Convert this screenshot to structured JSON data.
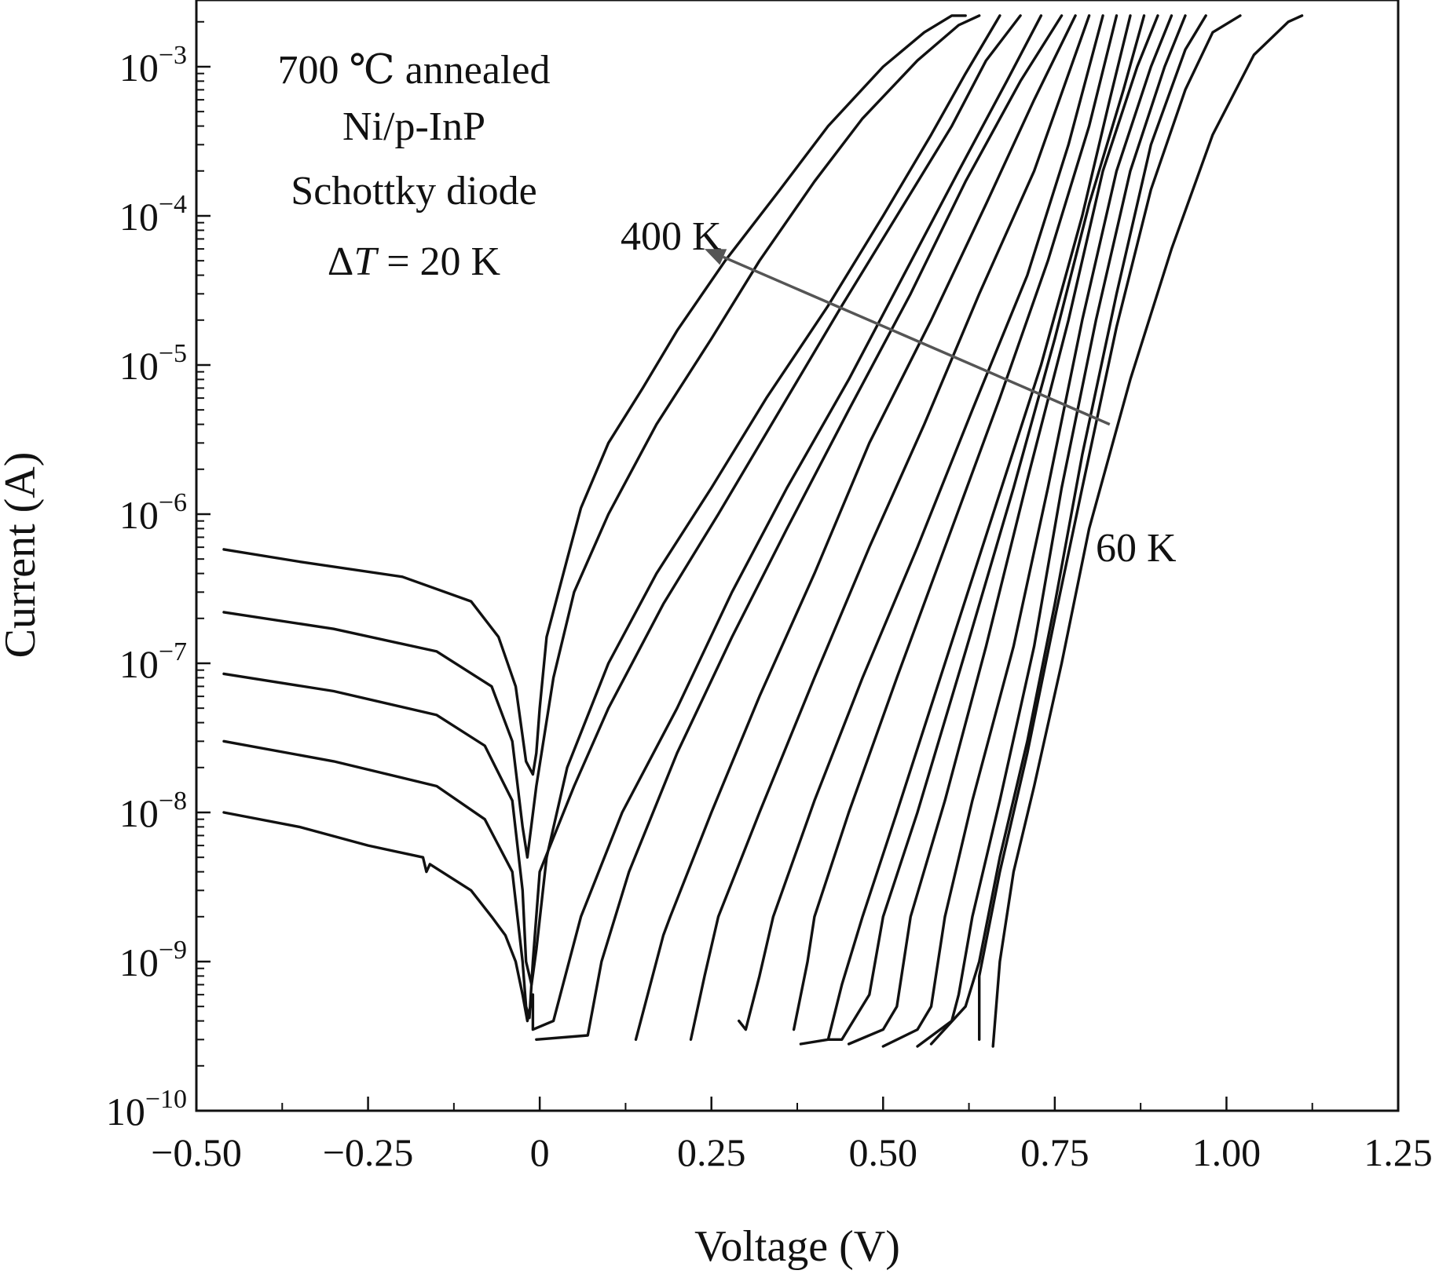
{
  "chart_data": {
    "type": "line",
    "xlabel": "Voltage (V)",
    "ylabel": "Current (A)",
    "xlim": [
      -0.5,
      1.25
    ],
    "ylim": [
      1e-10,
      0.0028
    ],
    "yscale": "log",
    "grid": false,
    "legend": "none",
    "x_ticks": [
      {
        "value": -0.5,
        "label": "−0.50"
      },
      {
        "value": -0.25,
        "label": "−0.25"
      },
      {
        "value": 0.0,
        "label": "0"
      },
      {
        "value": 0.25,
        "label": "0.25"
      },
      {
        "value": 0.5,
        "label": "0.50"
      },
      {
        "value": 0.75,
        "label": "0.75"
      },
      {
        "value": 1.0,
        "label": "1.00"
      },
      {
        "value": 1.25,
        "label": "1.25"
      }
    ],
    "y_ticks": [
      {
        "exp": -10,
        "base": "10",
        "sup": "−10"
      },
      {
        "exp": -9,
        "base": "10",
        "sup": "−9"
      },
      {
        "exp": -8,
        "base": "10",
        "sup": "−8"
      },
      {
        "exp": -7,
        "base": "10",
        "sup": "−7"
      },
      {
        "exp": -6,
        "base": "10",
        "sup": "−6"
      },
      {
        "exp": -5,
        "base": "10",
        "sup": "−5"
      },
      {
        "exp": -4,
        "base": "10",
        "sup": "−4"
      },
      {
        "exp": -3,
        "base": "10",
        "sup": "−3"
      }
    ],
    "annotations": {
      "info_lines": [
        "700 ℃ annealed",
        "Ni/p-InP",
        "Schottky diode"
      ],
      "delta_t": {
        "symbol": "Δ",
        "var": "T",
        "rest": " = 20 K"
      },
      "label_high": "400 K",
      "label_low": "60 K"
    },
    "arrow": {
      "from": [
        0.83,
        4e-06
      ],
      "to": [
        0.24,
        6e-05
      ],
      "color": "#555555"
    },
    "series": [
      {
        "points": [
          [
            -0.46,
            5.8e-07
          ],
          [
            -0.35,
            4.8e-07
          ],
          [
            -0.2,
            3.8e-07
          ],
          [
            -0.1,
            2.6e-07
          ],
          [
            -0.06,
            1.5e-07
          ],
          [
            -0.035,
            7e-08
          ],
          [
            -0.02,
            2.2e-08
          ],
          [
            -0.01,
            1.8e-08
          ],
          [
            -0.005,
            2.5e-08
          ],
          [
            0.0,
            5e-08
          ],
          [
            0.01,
            1.5e-07
          ],
          [
            0.04,
            5e-07
          ],
          [
            0.06,
            1.1e-06
          ],
          [
            0.1,
            3e-06
          ],
          [
            0.15,
            7e-06
          ],
          [
            0.2,
            1.7e-05
          ],
          [
            0.27,
            5e-05
          ],
          [
            0.35,
            0.00015
          ],
          [
            0.42,
            0.0004
          ],
          [
            0.5,
            0.001
          ],
          [
            0.56,
            0.0017
          ],
          [
            0.6,
            0.0022
          ],
          [
            0.62,
            0.0022
          ]
        ]
      },
      {
        "points": [
          [
            -0.46,
            2.2e-07
          ],
          [
            -0.3,
            1.7e-07
          ],
          [
            -0.15,
            1.2e-07
          ],
          [
            -0.07,
            7e-08
          ],
          [
            -0.04,
            3e-08
          ],
          [
            -0.025,
            8e-09
          ],
          [
            -0.018,
            5e-09
          ],
          [
            -0.005,
            1.5e-08
          ],
          [
            0.02,
            8e-08
          ],
          [
            0.05,
            3e-07
          ],
          [
            0.1,
            1e-06
          ],
          [
            0.17,
            4e-06
          ],
          [
            0.25,
            1.5e-05
          ],
          [
            0.32,
            5e-05
          ],
          [
            0.4,
            0.00017
          ],
          [
            0.47,
            0.00045
          ],
          [
            0.55,
            0.0011
          ],
          [
            0.61,
            0.0019
          ],
          [
            0.64,
            0.0022
          ]
        ]
      },
      {
        "points": [
          [
            -0.46,
            8.5e-08
          ],
          [
            -0.3,
            6.5e-08
          ],
          [
            -0.15,
            4.5e-08
          ],
          [
            -0.08,
            2.8e-08
          ],
          [
            -0.04,
            1.2e-08
          ],
          [
            -0.025,
            3e-09
          ],
          [
            -0.02,
            1e-09
          ],
          [
            -0.012,
            7e-10
          ],
          [
            -0.005,
            1.2e-09
          ],
          [
            0.01,
            5e-09
          ],
          [
            0.04,
            2e-08
          ],
          [
            0.1,
            1e-07
          ],
          [
            0.17,
            4e-07
          ],
          [
            0.25,
            1.5e-06
          ],
          [
            0.33,
            6e-06
          ],
          [
            0.42,
            2.5e-05
          ],
          [
            0.5,
            0.0001
          ],
          [
            0.57,
            0.00035
          ],
          [
            0.62,
            0.0009
          ],
          [
            0.67,
            0.0022
          ]
        ]
      },
      {
        "points": [
          [
            -0.46,
            3e-08
          ],
          [
            -0.3,
            2.2e-08
          ],
          [
            -0.15,
            1.5e-08
          ],
          [
            -0.08,
            9e-09
          ],
          [
            -0.04,
            4e-09
          ],
          [
            -0.025,
            1e-09
          ],
          [
            -0.02,
            5e-10
          ],
          [
            -0.015,
            4.2e-10
          ],
          [
            -0.01,
            1e-09
          ],
          [
            0.0,
            4e-09
          ],
          [
            0.05,
            1.5e-08
          ],
          [
            0.1,
            5e-08
          ],
          [
            0.18,
            2.5e-07
          ],
          [
            0.26,
            1e-06
          ],
          [
            0.35,
            5e-06
          ],
          [
            0.44,
            2.5e-05
          ],
          [
            0.52,
            0.0001
          ],
          [
            0.6,
            0.0004
          ],
          [
            0.65,
            0.0011
          ],
          [
            0.7,
            0.0022
          ]
        ]
      },
      {
        "points": [
          [
            -0.46,
            1e-08
          ],
          [
            -0.35,
            8e-09
          ],
          [
            -0.25,
            6e-09
          ],
          [
            -0.17,
            5e-09
          ],
          [
            -0.165,
            4e-09
          ],
          [
            -0.16,
            4.5e-09
          ],
          [
            -0.1,
            3e-09
          ],
          [
            -0.07,
            2e-09
          ],
          [
            -0.05,
            1.5e-09
          ],
          [
            -0.035,
            1e-09
          ],
          [
            -0.025,
            6e-10
          ],
          [
            -0.018,
            4e-10
          ],
          [
            -0.01,
            6e-10
          ],
          [
            -0.01,
            3.5e-10
          ],
          [
            0.02,
            4e-10
          ],
          [
            0.03,
            6e-10
          ],
          [
            0.06,
            2e-09
          ],
          [
            0.12,
            1e-08
          ],
          [
            0.2,
            5e-08
          ],
          [
            0.28,
            3e-07
          ],
          [
            0.36,
            1.5e-06
          ],
          [
            0.45,
            8e-06
          ],
          [
            0.53,
            4e-05
          ],
          [
            0.61,
            0.0002
          ],
          [
            0.68,
            0.0008
          ],
          [
            0.73,
            0.0022
          ]
        ]
      },
      {
        "points": [
          [
            -0.005,
            3e-10
          ],
          [
            0.07,
            3.2e-10
          ],
          [
            0.09,
            1e-09
          ],
          [
            0.13,
            4e-09
          ],
          [
            0.2,
            2.5e-08
          ],
          [
            0.28,
            1.5e-07
          ],
          [
            0.36,
            8e-07
          ],
          [
            0.45,
            5e-06
          ],
          [
            0.54,
            3e-05
          ],
          [
            0.62,
            0.00017
          ],
          [
            0.7,
            0.0008
          ],
          [
            0.76,
            0.0022
          ]
        ]
      },
      {
        "points": [
          [
            0.14,
            3e-10
          ],
          [
            0.18,
            1.5e-09
          ],
          [
            0.19,
            2e-09
          ],
          [
            0.25,
            1e-08
          ],
          [
            0.32,
            6e-08
          ],
          [
            0.4,
            4e-07
          ],
          [
            0.48,
            3e-06
          ],
          [
            0.57,
            2e-05
          ],
          [
            0.65,
            0.00012
          ],
          [
            0.72,
            0.0006
          ],
          [
            0.78,
            0.0022
          ]
        ]
      },
      {
        "points": [
          [
            0.22,
            3e-10
          ],
          [
            0.24,
            8e-10
          ],
          [
            0.26,
            2e-09
          ],
          [
            0.32,
            1e-08
          ],
          [
            0.4,
            8e-08
          ],
          [
            0.48,
            6e-07
          ],
          [
            0.56,
            4e-06
          ],
          [
            0.64,
            3e-05
          ],
          [
            0.72,
            0.0002
          ],
          [
            0.8,
            0.0022
          ]
        ]
      },
      {
        "points": [
          [
            0.29,
            4e-10
          ],
          [
            0.3,
            3.5e-10
          ],
          [
            0.32,
            8e-10
          ],
          [
            0.34,
            2e-09
          ],
          [
            0.4,
            1.2e-08
          ],
          [
            0.47,
            8e-08
          ],
          [
            0.55,
            6e-07
          ],
          [
            0.63,
            5e-06
          ],
          [
            0.71,
            4e-05
          ],
          [
            0.77,
            0.0003
          ],
          [
            0.82,
            0.0022
          ]
        ]
      },
      {
        "points": [
          [
            0.37,
            3.5e-10
          ],
          [
            0.39,
            1e-09
          ],
          [
            0.4,
            2e-09
          ],
          [
            0.45,
            1e-08
          ],
          [
            0.52,
            8e-08
          ],
          [
            0.6,
            8e-07
          ],
          [
            0.67,
            6e-06
          ],
          [
            0.74,
            5e-05
          ],
          [
            0.8,
            0.0004
          ],
          [
            0.84,
            0.0022
          ]
        ]
      },
      {
        "points": [
          [
            0.38,
            2.8e-10
          ],
          [
            0.42,
            3e-10
          ],
          [
            0.44,
            7e-10
          ],
          [
            0.47,
            2e-09
          ],
          [
            0.52,
            1e-08
          ],
          [
            0.59,
            1e-07
          ],
          [
            0.66,
            1e-06
          ],
          [
            0.73,
            1e-05
          ],
          [
            0.79,
            0.0001
          ],
          [
            0.83,
            0.0006
          ],
          [
            0.86,
            0.0022
          ]
        ]
      },
      {
        "points": [
          [
            0.42,
            3e-10
          ],
          [
            0.44,
            3e-10
          ],
          [
            0.48,
            6e-10
          ],
          [
            0.5,
            2e-09
          ],
          [
            0.55,
            1e-08
          ],
          [
            0.62,
            1.2e-07
          ],
          [
            0.69,
            1.5e-06
          ],
          [
            0.75,
            1.5e-05
          ],
          [
            0.8,
            0.00012
          ],
          [
            0.85,
            0.0007
          ],
          [
            0.88,
            0.0022
          ]
        ]
      },
      {
        "points": [
          [
            0.45,
            2.8e-10
          ],
          [
            0.5,
            3.5e-10
          ],
          [
            0.52,
            5e-10
          ],
          [
            0.54,
            2e-09
          ],
          [
            0.59,
            1.2e-08
          ],
          [
            0.65,
            1.3e-07
          ],
          [
            0.71,
            1.7e-06
          ],
          [
            0.77,
            2e-05
          ],
          [
            0.82,
            0.0002
          ],
          [
            0.87,
            0.001
          ],
          [
            0.9,
            0.0022
          ]
        ]
      },
      {
        "points": [
          [
            0.5,
            2.7e-10
          ],
          [
            0.55,
            3.5e-10
          ],
          [
            0.57,
            5e-10
          ],
          [
            0.59,
            2e-09
          ],
          [
            0.63,
            1.2e-08
          ],
          [
            0.69,
            1.3e-07
          ],
          [
            0.74,
            1.5e-06
          ],
          [
            0.79,
            2e-05
          ],
          [
            0.84,
            0.0002
          ],
          [
            0.89,
            0.001
          ],
          [
            0.92,
            0.0022
          ]
        ]
      },
      {
        "points": [
          [
            0.55,
            2.7e-10
          ],
          [
            0.6,
            4e-10
          ],
          [
            0.61,
            6e-10
          ],
          [
            0.63,
            2e-09
          ],
          [
            0.67,
            1.2e-08
          ],
          [
            0.72,
            1.3e-07
          ],
          [
            0.76,
            1.5e-06
          ],
          [
            0.81,
            2e-05
          ],
          [
            0.86,
            0.0002
          ],
          [
            0.91,
            0.001
          ],
          [
            0.94,
            0.0022
          ]
        ]
      },
      {
        "points": [
          [
            0.57,
            2.8e-10
          ],
          [
            0.62,
            5e-10
          ],
          [
            0.64,
            1e-09
          ],
          [
            0.67,
            5e-09
          ],
          [
            0.71,
            3e-08
          ],
          [
            0.75,
            2.5e-07
          ],
          [
            0.79,
            2.5e-06
          ],
          [
            0.84,
            3e-05
          ],
          [
            0.89,
            0.0003
          ],
          [
            0.94,
            0.0013
          ],
          [
            0.97,
            0.0022
          ]
        ]
      },
      {
        "points": [
          [
            0.64,
            3e-10
          ],
          [
            0.64,
            8e-10
          ],
          [
            0.67,
            4e-09
          ],
          [
            0.71,
            2.5e-08
          ],
          [
            0.75,
            2e-07
          ],
          [
            0.79,
            1.5e-06
          ],
          [
            0.84,
            1.8e-05
          ],
          [
            0.89,
            0.00015
          ],
          [
            0.94,
            0.0007
          ],
          [
            0.98,
            0.0017
          ],
          [
            1.02,
            0.0022
          ]
        ]
      },
      {
        "points": [
          [
            0.66,
            2.7e-10
          ],
          [
            0.67,
            1e-09
          ],
          [
            0.69,
            4e-09
          ],
          [
            0.72,
            1.5e-08
          ],
          [
            0.76,
            1e-07
          ],
          [
            0.8,
            8e-07
          ],
          [
            0.86,
            8e-06
          ],
          [
            0.92,
            6e-05
          ],
          [
            0.98,
            0.00035
          ],
          [
            1.04,
            0.0012
          ],
          [
            1.09,
            0.002
          ],
          [
            1.11,
            0.0022
          ]
        ]
      }
    ]
  }
}
